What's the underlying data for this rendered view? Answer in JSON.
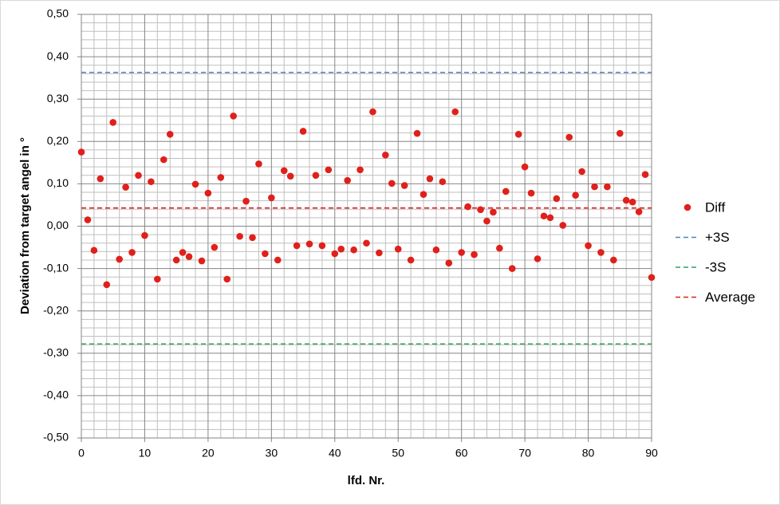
{
  "chart_data": {
    "type": "scatter",
    "x_label": "lfd. Nr.",
    "y_label": "Deviation from target angel in °",
    "xlim": [
      0,
      90
    ],
    "xticks": [
      0,
      10,
      20,
      30,
      40,
      50,
      60,
      70,
      80,
      90
    ],
    "ylim": [
      -0.5,
      0.5
    ],
    "yticks": [
      {
        "value": -0.5,
        "label": "-0,50"
      },
      {
        "value": -0.4,
        "label": "-0,40"
      },
      {
        "value": -0.3,
        "label": "-0,30"
      },
      {
        "value": -0.2,
        "label": "-0,20"
      },
      {
        "value": -0.1,
        "label": "-0,10"
      },
      {
        "value": 0,
        "label": "0,00"
      },
      {
        "value": 0.1,
        "label": "0,10"
      },
      {
        "value": 0.2,
        "label": "0,20"
      },
      {
        "value": 0.3,
        "label": "0,30"
      },
      {
        "value": 0.4,
        "label": "0,40"
      },
      {
        "value": 0.5,
        "label": "0,50"
      }
    ],
    "grid": true,
    "minor_grid": true,
    "legend": "right",
    "series": [
      {
        "name": "Diff",
        "color": "#e0201b",
        "style": "markers",
        "x": [
          0,
          1,
          2,
          3,
          4,
          5,
          6,
          7,
          8,
          9,
          10,
          11,
          12,
          13,
          14,
          15,
          16,
          17,
          18,
          19,
          20,
          21,
          22,
          23,
          24,
          25,
          26,
          27,
          28,
          29,
          30,
          31,
          32,
          33,
          34,
          35,
          36,
          37,
          38,
          39,
          40,
          41,
          42,
          43,
          44,
          45,
          46,
          47,
          48,
          49,
          50,
          51,
          52,
          53,
          54,
          55,
          56,
          57,
          58,
          59,
          60,
          61,
          62,
          63,
          64,
          65,
          66,
          67,
          68,
          69,
          70,
          71,
          72,
          73,
          74,
          75,
          76,
          77,
          78,
          79,
          80,
          81,
          82,
          83,
          84,
          85,
          86,
          87,
          88,
          89,
          90
        ],
        "values": [
          0.175,
          0.015,
          -0.057,
          0.112,
          -0.138,
          0.245,
          -0.078,
          0.092,
          -0.062,
          0.12,
          -0.022,
          0.105,
          -0.125,
          0.157,
          0.217,
          -0.08,
          -0.062,
          -0.072,
          0.099,
          -0.082,
          0.078,
          -0.05,
          0.115,
          -0.125,
          0.26,
          -0.024,
          0.059,
          -0.027,
          0.147,
          -0.065,
          0.067,
          -0.08,
          0.131,
          0.118,
          -0.046,
          0.224,
          -0.042,
          0.12,
          -0.046,
          0.133,
          -0.065,
          -0.054,
          0.108,
          -0.056,
          0.133,
          -0.04,
          0.27,
          -0.063,
          0.168,
          0.101,
          -0.054,
          0.096,
          -0.08,
          0.219,
          0.075,
          0.112,
          -0.056,
          0.105,
          -0.087,
          0.27,
          -0.062,
          0.046,
          -0.067,
          0.039,
          0.012,
          0.033,
          -0.052,
          0.082,
          -0.1,
          0.217,
          0.14,
          0.078,
          -0.077,
          0.024,
          0.02,
          0.065,
          0.002,
          0.21,
          0.073,
          0.129,
          -0.046,
          0.093,
          -0.062,
          0.093,
          -0.08,
          0.219,
          0.061,
          0.057,
          0.034,
          0.122,
          -0.121
        ]
      },
      {
        "name": "+3S",
        "color": "#4f81bd",
        "style": "dashed",
        "x": [
          0,
          90
        ],
        "values": [
          0.363,
          0.363
        ]
      },
      {
        "name": "-3S",
        "color": "#2ea060",
        "style": "dashed",
        "x": [
          0,
          90
        ],
        "values": [
          -0.278,
          -0.278
        ]
      },
      {
        "name": "Average",
        "color": "#e0201b",
        "style": "dashed",
        "x": [
          0,
          90
        ],
        "values": [
          0.043,
          0.043
        ]
      }
    ]
  }
}
